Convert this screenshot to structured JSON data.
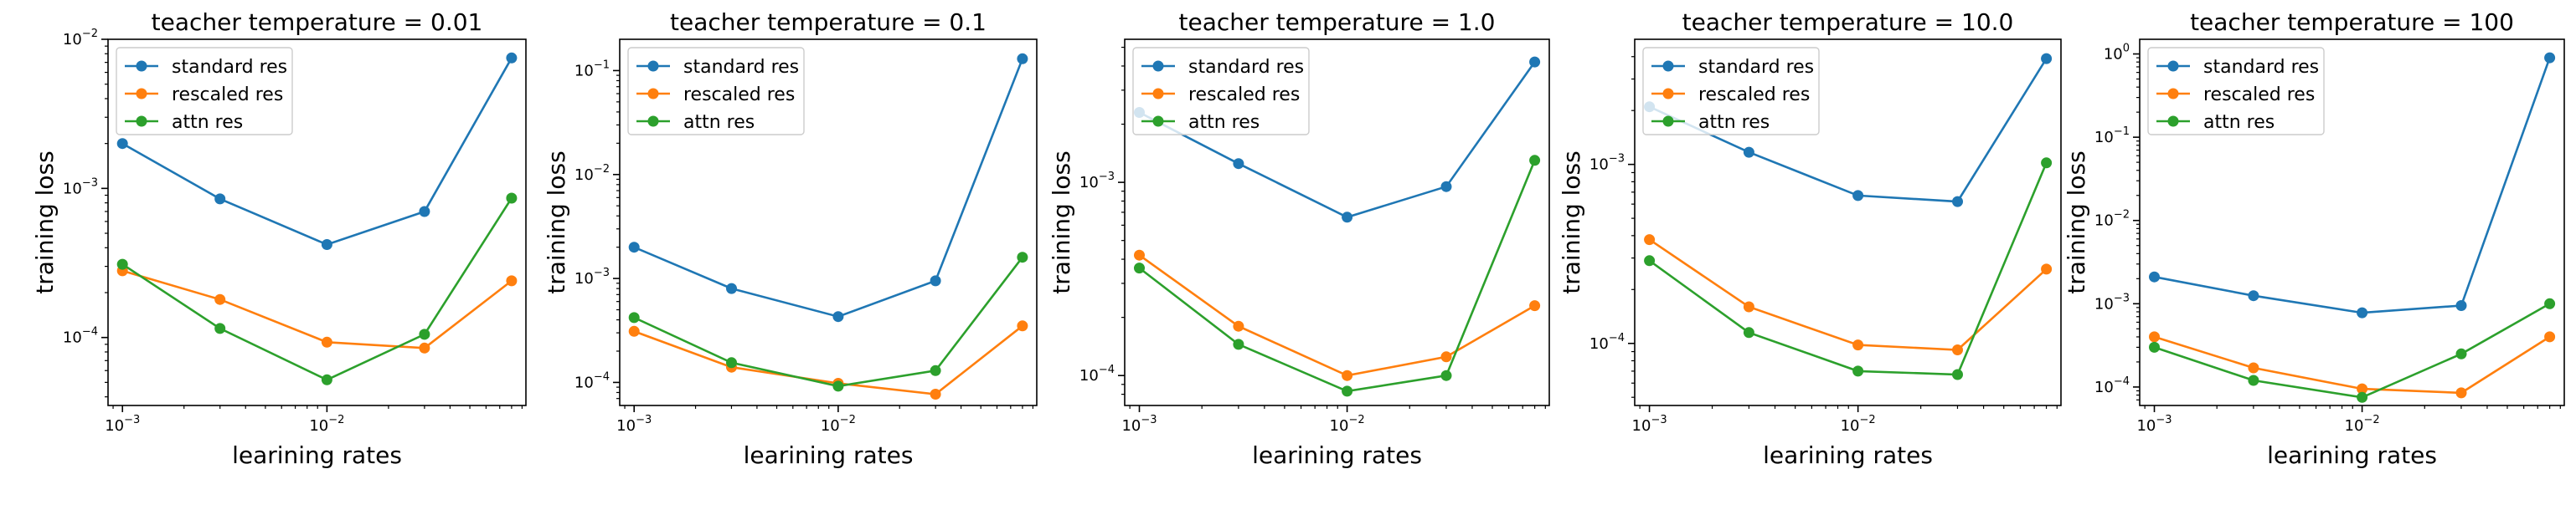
{
  "figure": {
    "legend_loc": "upper-left"
  },
  "chart_data": [
    {
      "type": "line",
      "title": "teacher temperature = 0.01",
      "xlabel": "learining rates",
      "ylabel": "training loss",
      "xscale": "log",
      "yscale": "log",
      "x": [
        0.001,
        0.003,
        0.01,
        0.03,
        0.08
      ],
      "xticks": [
        {
          "value": 0.001,
          "base": "10",
          "exp": "−3"
        },
        {
          "value": 0.01,
          "base": "10",
          "exp": "−2"
        }
      ],
      "ylim": [
        3.5e-05,
        0.01
      ],
      "yticks": [
        {
          "value": 0.0001,
          "base": "10",
          "exp": "−4"
        },
        {
          "value": 0.001,
          "base": "10",
          "exp": "−3"
        },
        {
          "value": 0.01,
          "base": "10",
          "exp": "−2"
        }
      ],
      "legend": "upper left",
      "series": [
        {
          "name": "standard res",
          "color": "#1f77b4",
          "values": [
            0.002,
            0.00085,
            0.00042,
            0.0007,
            0.0075
          ]
        },
        {
          "name": "rescaled res",
          "color": "#ff7f0e",
          "values": [
            0.00028,
            0.00018,
            9.3e-05,
            8.5e-05,
            0.00024
          ]
        },
        {
          "name": "attn res",
          "color": "#2ca02c",
          "values": [
            0.00031,
            0.000115,
            5.2e-05,
            0.000105,
            0.00086
          ]
        }
      ]
    },
    {
      "type": "line",
      "title": "teacher temperature = 0.1",
      "xlabel": "learining rates",
      "ylabel": "training loss",
      "xscale": "log",
      "yscale": "log",
      "x": [
        0.001,
        0.003,
        0.01,
        0.03,
        0.08
      ],
      "xticks": [
        {
          "value": 0.001,
          "base": "10",
          "exp": "−3"
        },
        {
          "value": 0.01,
          "base": "10",
          "exp": "−2"
        }
      ],
      "ylim": [
        6e-05,
        0.2
      ],
      "yticks": [
        {
          "value": 0.0001,
          "base": "10",
          "exp": "−4"
        },
        {
          "value": 0.001,
          "base": "10",
          "exp": "−3"
        },
        {
          "value": 0.01,
          "base": "10",
          "exp": "−2"
        },
        {
          "value": 0.1,
          "base": "10",
          "exp": "−1"
        }
      ],
      "legend": "upper left",
      "series": [
        {
          "name": "standard res",
          "color": "#1f77b4",
          "values": [
            0.002,
            0.0008,
            0.00043,
            0.00095,
            0.13
          ]
        },
        {
          "name": "rescaled res",
          "color": "#ff7f0e",
          "values": [
            0.00031,
            0.00014,
            9.8e-05,
            7.7e-05,
            0.00035
          ]
        },
        {
          "name": "attn res",
          "color": "#2ca02c",
          "values": [
            0.00042,
            0.000155,
            9.2e-05,
            0.00013,
            0.0016
          ]
        }
      ]
    },
    {
      "type": "line",
      "title": "teacher temperature = 1.0",
      "xlabel": "learining rates",
      "ylabel": "training loss",
      "xscale": "log",
      "yscale": "log",
      "x": [
        0.001,
        0.003,
        0.01,
        0.03,
        0.08
      ],
      "xticks": [
        {
          "value": 0.001,
          "base": "10",
          "exp": "−3"
        },
        {
          "value": 0.01,
          "base": "10",
          "exp": "−2"
        }
      ],
      "ylim": [
        7e-05,
        0.0055
      ],
      "yticks": [
        {
          "value": 0.0001,
          "base": "10",
          "exp": "−4"
        },
        {
          "value": 0.001,
          "base": "10",
          "exp": "−3"
        }
      ],
      "legend": "upper left",
      "series": [
        {
          "name": "standard res",
          "color": "#1f77b4",
          "values": [
            0.0023,
            0.00125,
            0.00066,
            0.00095,
            0.0042
          ]
        },
        {
          "name": "rescaled res",
          "color": "#ff7f0e",
          "values": [
            0.00042,
            0.00018,
            0.0001,
            0.000125,
            0.00023
          ]
        },
        {
          "name": "attn res",
          "color": "#2ca02c",
          "values": [
            0.00036,
            0.000145,
            8.3e-05,
            0.0001,
            0.0013
          ]
        }
      ]
    },
    {
      "type": "line",
      "title": "teacher temperature = 10.0",
      "xlabel": "learining rates",
      "ylabel": "training loss",
      "xscale": "log",
      "yscale": "log",
      "x": [
        0.001,
        0.003,
        0.01,
        0.03,
        0.08
      ],
      "xticks": [
        {
          "value": 0.001,
          "base": "10",
          "exp": "−3"
        },
        {
          "value": 0.01,
          "base": "10",
          "exp": "−2"
        }
      ],
      "ylim": [
        4.5e-05,
        0.005
      ],
      "yticks": [
        {
          "value": 0.0001,
          "base": "10",
          "exp": "−4"
        },
        {
          "value": 0.001,
          "base": "10",
          "exp": "−3"
        }
      ],
      "legend": "upper left",
      "series": [
        {
          "name": "standard res",
          "color": "#1f77b4",
          "values": [
            0.0021,
            0.00117,
            0.00067,
            0.00062,
            0.0039
          ]
        },
        {
          "name": "rescaled res",
          "color": "#ff7f0e",
          "values": [
            0.00038,
            0.00016,
            9.8e-05,
            9.2e-05,
            0.00026
          ]
        },
        {
          "name": "attn res",
          "color": "#2ca02c",
          "values": [
            0.00029,
            0.000115,
            7e-05,
            6.7e-05,
            0.00102
          ]
        }
      ]
    },
    {
      "type": "line",
      "title": "teacher temperature = 100",
      "xlabel": "learining rates",
      "ylabel": "training loss",
      "xscale": "log",
      "yscale": "log",
      "x": [
        0.001,
        0.003,
        0.01,
        0.03,
        0.08
      ],
      "xticks": [
        {
          "value": 0.001,
          "base": "10",
          "exp": "−3"
        },
        {
          "value": 0.01,
          "base": "10",
          "exp": "−2"
        }
      ],
      "ylim": [
        6e-05,
        1.5
      ],
      "yticks": [
        {
          "value": 0.0001,
          "base": "10",
          "exp": "−4"
        },
        {
          "value": 0.001,
          "base": "10",
          "exp": "−3"
        },
        {
          "value": 0.01,
          "base": "10",
          "exp": "−2"
        },
        {
          "value": 0.1,
          "base": "10",
          "exp": "−1"
        },
        {
          "value": 1,
          "base": "10",
          "exp": "0"
        }
      ],
      "legend": "upper left",
      "series": [
        {
          "name": "standard res",
          "color": "#1f77b4",
          "values": [
            0.0021,
            0.00125,
            0.00078,
            0.00095,
            0.9
          ]
        },
        {
          "name": "rescaled res",
          "color": "#ff7f0e",
          "values": [
            0.0004,
            0.00017,
            9.5e-05,
            8.5e-05,
            0.0004
          ]
        },
        {
          "name": "attn res",
          "color": "#2ca02c",
          "values": [
            0.0003,
            0.00012,
            7.5e-05,
            0.00025,
            0.001
          ]
        }
      ]
    }
  ]
}
